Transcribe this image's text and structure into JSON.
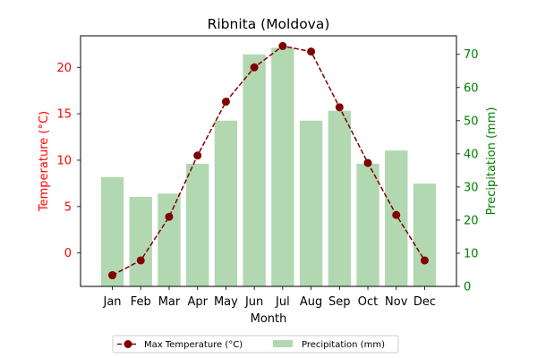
{
  "chart_data": {
    "type": "bar",
    "title": "Ribnita (Moldova)",
    "xlabel": "Month",
    "categories": [
      "Jan",
      "Feb",
      "Mar",
      "Apr",
      "May",
      "Jun",
      "Jul",
      "Aug",
      "Sep",
      "Oct",
      "Nov",
      "Dec"
    ],
    "series": [
      {
        "name": "Precipitation (mm)",
        "type": "bar",
        "axis": "right",
        "color": "#b2d8b2",
        "values": [
          33,
          27,
          28,
          37,
          50,
          70,
          72,
          50,
          53,
          37,
          41,
          31
        ]
      },
      {
        "name": "Max Temperature (°C)",
        "type": "line",
        "axis": "left",
        "color": "#800000",
        "line_style": "dashed",
        "marker": "circle",
        "values": [
          -2.4,
          -0.8,
          3.9,
          10.5,
          16.3,
          20.0,
          22.3,
          21.7,
          15.7,
          9.7,
          4.1,
          -0.8
        ]
      }
    ],
    "y_left": {
      "label": "Temperature (°C)",
      "color": "#ff0000",
      "range": [
        -3.6,
        23.4
      ],
      "ticks": [
        0,
        5,
        10,
        15,
        20
      ],
      "tick_labels": [
        "0",
        "5",
        "10",
        "15",
        "20"
      ]
    },
    "y_right": {
      "label": "Precipitation (mm)",
      "color": "#008000",
      "range": [
        0,
        75.6
      ],
      "ticks": [
        0,
        10,
        20,
        30,
        40,
        50,
        60,
        70
      ],
      "tick_labels": [
        "0",
        "10",
        "20",
        "30",
        "40",
        "50",
        "60",
        "70"
      ]
    },
    "legend_position": "bottom-center",
    "grid": false
  }
}
